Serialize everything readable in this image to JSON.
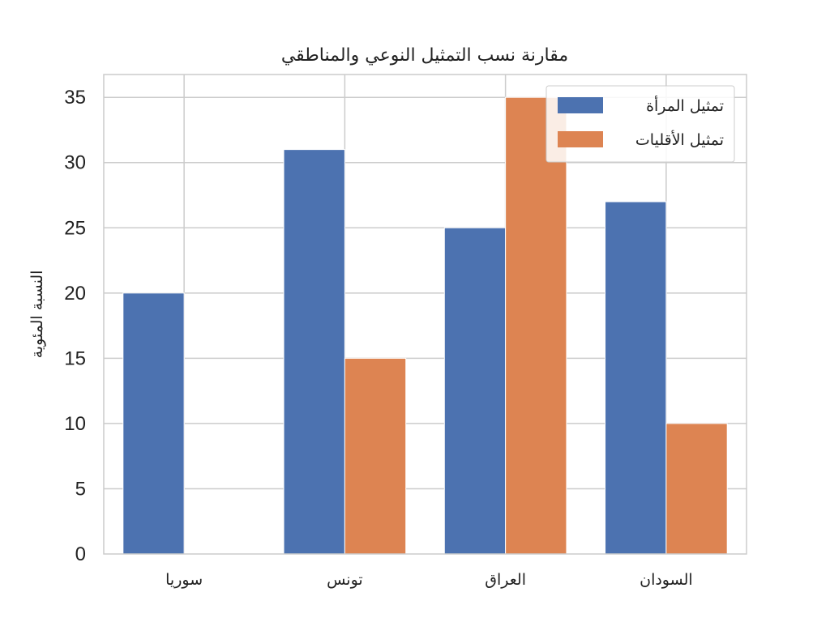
{
  "chart_data": {
    "type": "bar",
    "title": "مقارنة نسب التمثيل النوعي والمناطقي",
    "ylabel": "النسبة المئوية",
    "xlabel": "",
    "categories": [
      "سوريا",
      "تونس",
      "العراق",
      "السودان"
    ],
    "series": [
      {
        "name": "تمثيل المرأة",
        "color": "#4c72b0",
        "values": [
          20,
          31,
          25,
          27
        ]
      },
      {
        "name": "تمثيل الأقليات",
        "color": "#dd8452",
        "values": [
          0,
          15,
          35,
          10
        ]
      }
    ],
    "ylim": [
      0,
      36.75
    ],
    "yticks": [
      "0",
      "5",
      "10",
      "15",
      "20",
      "25",
      "30",
      "35"
    ],
    "grid": true,
    "legend_position": "top-right"
  }
}
